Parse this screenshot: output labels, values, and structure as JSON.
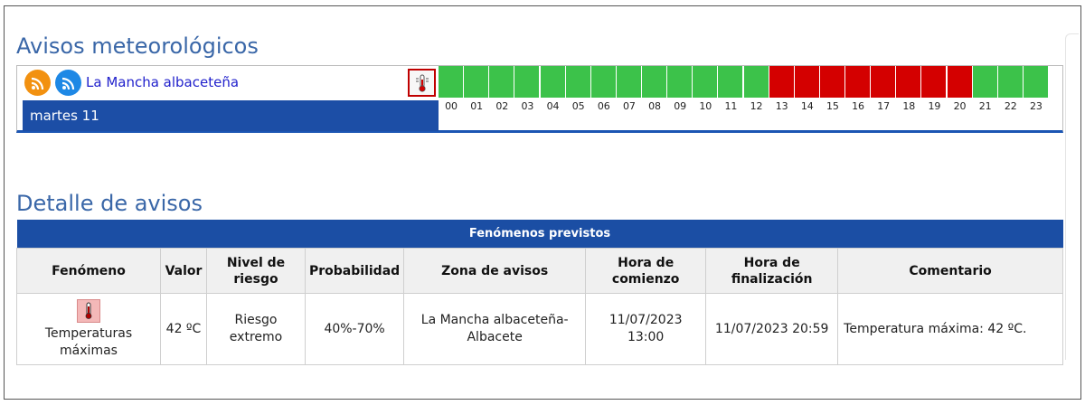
{
  "avisos": {
    "title": "Avisos meteorológicos",
    "zone_link": "La Mancha albaceteña",
    "day_label": "martes 11",
    "colors": {
      "green": "#3cc24a",
      "red": "#d40000",
      "day_bar": "#1c4ea6"
    },
    "hours": [
      {
        "label": "00",
        "level": "green"
      },
      {
        "label": "01",
        "level": "green"
      },
      {
        "label": "02",
        "level": "green"
      },
      {
        "label": "03",
        "level": "green"
      },
      {
        "label": "04",
        "level": "green"
      },
      {
        "label": "05",
        "level": "green"
      },
      {
        "label": "06",
        "level": "green"
      },
      {
        "label": "07",
        "level": "green"
      },
      {
        "label": "08",
        "level": "green"
      },
      {
        "label": "09",
        "level": "green"
      },
      {
        "label": "10",
        "level": "green"
      },
      {
        "label": "11",
        "level": "green"
      },
      {
        "label": "12",
        "level": "green"
      },
      {
        "label": "13",
        "level": "red"
      },
      {
        "label": "14",
        "level": "red"
      },
      {
        "label": "15",
        "level": "red"
      },
      {
        "label": "16",
        "level": "red"
      },
      {
        "label": "17",
        "level": "red"
      },
      {
        "label": "18",
        "level": "red"
      },
      {
        "label": "19",
        "level": "red"
      },
      {
        "label": "20",
        "level": "red"
      },
      {
        "label": "21",
        "level": "green"
      },
      {
        "label": "22",
        "level": "green"
      },
      {
        "label": "23",
        "level": "green"
      }
    ]
  },
  "detalle": {
    "title": "Detalle de avisos",
    "caption": "Fenómenos previstos",
    "headers": {
      "fenomeno": "Fenómeno",
      "valor": "Valor",
      "nivel_1": "Nivel de",
      "nivel_2": "riesgo",
      "probabilidad": "Probabilidad",
      "zona": "Zona de avisos",
      "comienzo_1": "Hora de",
      "comienzo_2": "comienzo",
      "fin_1": "Hora de",
      "fin_2": "finalización",
      "comentario": "Comentario"
    },
    "row": {
      "fenomeno_1": "Temperaturas",
      "fenomeno_2": "máximas",
      "valor": "42 ºC",
      "nivel": "Riesgo extremo",
      "probabilidad": "40%-70%",
      "zona_1": "La Mancha albaceteña-",
      "zona_2": "Albacete",
      "comienzo": "11/07/2023 13:00",
      "fin": "11/07/2023 20:59",
      "comentario": "Temperatura máxima: 42 ºC."
    }
  }
}
